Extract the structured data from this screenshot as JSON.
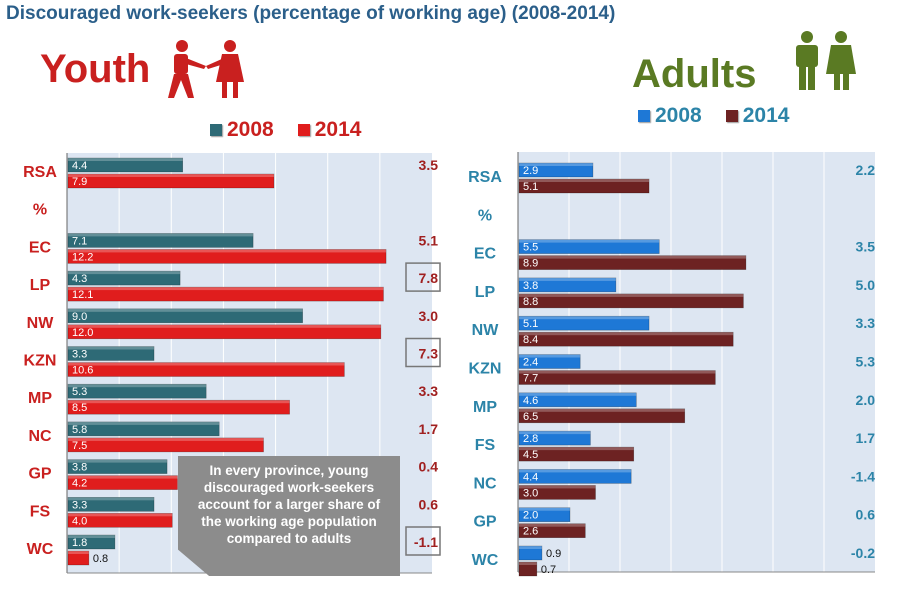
{
  "title": "Discouraged work-seekers (percentage of working age) (2008-2014)",
  "callout": "In every province, young discouraged work-seekers account for a larger share of the working age population compared to adults",
  "colors": {
    "youth_2008": "#2e6a76",
    "youth_2014": "#e01d1d",
    "adult_2008": "#1e78d6",
    "adult_2014": "#6d2222",
    "youth_label": "#c9201f",
    "adult_label": "#2c84a8",
    "adult_title": "#5a7a23",
    "plot_bg": "#dde6f2"
  },
  "chart_data": [
    {
      "type": "bar",
      "title": "Youth",
      "orientation": "horizontal",
      "categories": [
        "RSA",
        "%",
        "EC",
        "LP",
        "NW",
        "KZN",
        "MP",
        "NC",
        "GP",
        "FS",
        "WC"
      ],
      "series": [
        {
          "name": "2008",
          "values": [
            4.4,
            null,
            7.1,
            4.3,
            9.0,
            3.3,
            5.3,
            5.8,
            3.8,
            3.3,
            1.8
          ]
        },
        {
          "name": "2014",
          "values": [
            7.9,
            null,
            12.2,
            12.1,
            12.0,
            10.6,
            8.5,
            7.5,
            4.2,
            4.0,
            0.8
          ]
        }
      ],
      "value_labels": {
        "2008": [
          "4.4",
          "",
          "7.1",
          "4.3",
          "9.0",
          "3.3",
          "5.3",
          "5.8",
          "3.8",
          "3.3",
          "1.8"
        ],
        "2014": [
          "7.9",
          "",
          "12.2",
          "12.1",
          "12.0",
          "10.6",
          "8.5",
          "7.5",
          "4.2",
          "4.0",
          "0.8"
        ]
      },
      "difference_labels": [
        "3.5",
        "",
        "5.1",
        "7.8",
        "3.0",
        "7.3",
        "3.3",
        "1.7",
        "0.4",
        "0.6",
        "-1.1"
      ],
      "boxed_differences": [
        "LP",
        "KZN",
        "WC"
      ],
      "xlim": [
        0,
        14
      ],
      "legend": "top-center"
    },
    {
      "type": "bar",
      "title": "Adults",
      "orientation": "horizontal",
      "categories": [
        "RSA",
        "%",
        "EC",
        "LP",
        "NW",
        "KZN",
        "MP",
        "FS",
        "NC",
        "GP",
        "WC"
      ],
      "series": [
        {
          "name": "2008",
          "values": [
            2.9,
            null,
            5.5,
            3.8,
            5.1,
            2.4,
            4.6,
            2.8,
            4.4,
            2.0,
            0.9
          ]
        },
        {
          "name": "2014",
          "values": [
            5.1,
            null,
            8.9,
            8.8,
            8.4,
            7.7,
            6.5,
            4.5,
            3.0,
            2.6,
            0.7
          ]
        }
      ],
      "value_labels": {
        "2008": [
          "2.9",
          "",
          "5.5",
          "3.8",
          "5.1",
          "2.4",
          "4.6",
          "2.8",
          "4.4",
          "2.0",
          "0.9"
        ],
        "2014": [
          "5.1",
          "",
          "8.9",
          "8.8",
          "8.4",
          "7.7",
          "6.5",
          "4.5",
          "3.0",
          "2.6",
          "0.7"
        ]
      },
      "difference_labels": [
        "2.2",
        "",
        "3.5",
        "5.0",
        "3.3",
        "5.3",
        "2.0",
        "1.7",
        "-1.4",
        "0.6",
        "-0.2"
      ],
      "xlim": [
        0,
        14
      ],
      "legend": "top-center"
    }
  ]
}
